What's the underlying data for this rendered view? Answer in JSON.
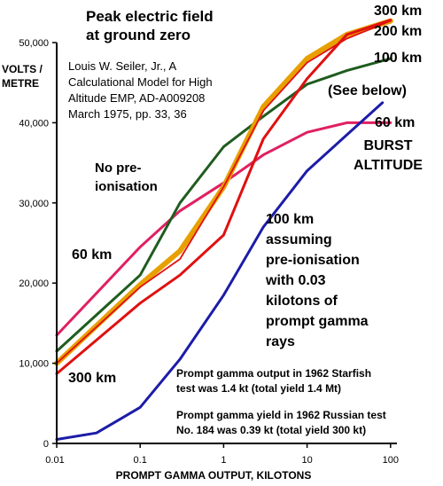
{
  "chart_data": {
    "type": "line",
    "title_lines": [
      "Peak electric field",
      "at ground zero"
    ],
    "ylabel_lines": [
      "VOLTS /",
      "METRE"
    ],
    "xlabel": "PROMPT GAMMA OUTPUT, KILOTONS",
    "x_scale": "log",
    "xlim": [
      0.01,
      100
    ],
    "ylim": [
      0,
      50000
    ],
    "x_ticks": [
      {
        "v": 0.01,
        "label": "0.01"
      },
      {
        "v": 0.1,
        "label": "0.1"
      },
      {
        "v": 1,
        "label": "1"
      },
      {
        "v": 10,
        "label": "10"
      },
      {
        "v": 100,
        "label": "100"
      }
    ],
    "y_ticks": [
      {
        "v": 0,
        "label": "0"
      },
      {
        "v": 10000,
        "label": "10,000"
      },
      {
        "v": 20000,
        "label": "20,000"
      },
      {
        "v": 30000,
        "label": "30,000"
      },
      {
        "v": 40000,
        "label": "40,000"
      },
      {
        "v": 50000,
        "label": "50,000"
      }
    ],
    "series": [
      {
        "color": "#e02060",
        "x": [
          0.01,
          0.1,
          0.3,
          1,
          3,
          10,
          30,
          100
        ],
        "y": [
          13500,
          24500,
          29000,
          32500,
          36000,
          38800,
          40000,
          40000
        ]
      },
      {
        "color": "#1f5c1f",
        "x": [
          0.01,
          0.1,
          0.3,
          1,
          3,
          10,
          30,
          100
        ],
        "y": [
          11500,
          21000,
          30000,
          37000,
          40800,
          44800,
          46500,
          48000
        ]
      },
      {
        "color": "#e8a000",
        "x": [
          0.01,
          0.1,
          0.3,
          1,
          3,
          10,
          30,
          100
        ],
        "y": [
          10000,
          19800,
          24000,
          32000,
          42000,
          48000,
          51000,
          52700
        ],
        "width": 6
      },
      {
        "color": "#e01010",
        "x": [
          0.01,
          0.1,
          0.3,
          1,
          3,
          10,
          30,
          100
        ],
        "y": [
          10000,
          19500,
          23000,
          32000,
          41500,
          47500,
          50500,
          52700
        ],
        "width": 1.8
      },
      {
        "color": "#e01010",
        "x": [
          0.01,
          0.1,
          0.3,
          1,
          3,
          10,
          30,
          100
        ],
        "y": [
          8700,
          17500,
          21000,
          26000,
          38000,
          45500,
          51000,
          52800
        ]
      },
      {
        "color": "#1c1ca8",
        "x": [
          0.01,
          0.03,
          0.1,
          0.3,
          1,
          3,
          10,
          30,
          80
        ],
        "y": [
          500,
          1300,
          4500,
          10500,
          18500,
          27000,
          34000,
          38500,
          42500
        ]
      }
    ],
    "annotations": {
      "source": [
        "Louis W. Seiler, Jr., A",
        "Calculational Model for High",
        "Altitude EMP, AD-A009208",
        "March 1975, pp. 33, 36"
      ],
      "no_preionisation": [
        "No pre-",
        "ionisation"
      ],
      "label_60km_left": "60 km",
      "label_300km_left": "300 km",
      "label_300km_right": "300 km",
      "label_200km_right": "200 km",
      "label_100km_right": "100 km",
      "see_below": "(See below)",
      "label_60km_right": "60 km",
      "burst_altitude": [
        "BURST",
        "ALTITUDE"
      ],
      "preionisation_note": [
        "100 km",
        "assuming",
        "pre-ionisation",
        "with 0.03",
        "kilotons of",
        "prompt gamma",
        "rays"
      ],
      "starfish_note": [
        "Prompt gamma output in 1962 Starfish",
        "test was 1.4 kt (total yield 1.4 Mt)"
      ],
      "russian_note": [
        "Prompt gamma yield in 1962 Russian test",
        "No. 184 was 0.39 kt (total yield 300 kt)"
      ]
    }
  }
}
